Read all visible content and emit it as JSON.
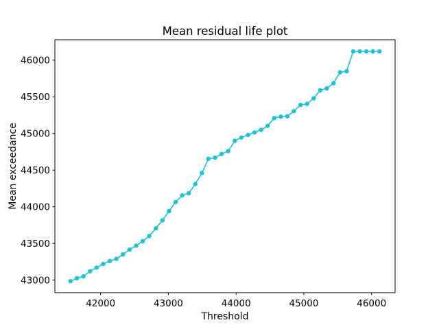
{
  "figure": {
    "background": "#ffffff",
    "spine_color": "#000000",
    "text_color": "#000000"
  },
  "chart_data": {
    "type": "line",
    "title": "Mean residual life plot",
    "xlabel": "Threshold",
    "ylabel": "Mean exceedance",
    "line_color": "#1cc3d5",
    "marker": "o",
    "marker_px_radius": 3.2,
    "line_width": 1.6,
    "grid": false,
    "legend": null,
    "xlim": [
      41325,
      46347
    ],
    "ylim": [
      42828,
      46279
    ],
    "xticks": [
      42000,
      43000,
      44000,
      45000,
      46000
    ],
    "yticks": [
      43000,
      43500,
      44000,
      44500,
      45000,
      45500,
      46000
    ],
    "x": [
      41555,
      41650,
      41747,
      41844,
      41941,
      42039,
      42136,
      42233,
      42330,
      42427,
      42524,
      42621,
      42718,
      42815,
      42913,
      43010,
      43107,
      43204,
      43301,
      43398,
      43495,
      43592,
      43689,
      43786,
      43884,
      43981,
      44078,
      44175,
      44272,
      44369,
      44466,
      44563,
      44660,
      44757,
      44854,
      44951,
      45048,
      45145,
      45242,
      45339,
      45437,
      45534,
      45631,
      45728,
      45825,
      45922,
      46019,
      46116
    ],
    "y": [
      42985,
      43025,
      43050,
      43120,
      43170,
      43220,
      43260,
      43290,
      43350,
      43415,
      43470,
      43530,
      43600,
      43705,
      43815,
      43940,
      44065,
      44155,
      44185,
      44310,
      44460,
      44655,
      44670,
      44720,
      44760,
      44900,
      44945,
      44980,
      45015,
      45050,
      45105,
      45210,
      45230,
      45235,
      45305,
      45390,
      45405,
      45480,
      45590,
      45615,
      45685,
      45835,
      45850,
      46120,
      46120,
      46120,
      46120,
      46120
    ]
  }
}
